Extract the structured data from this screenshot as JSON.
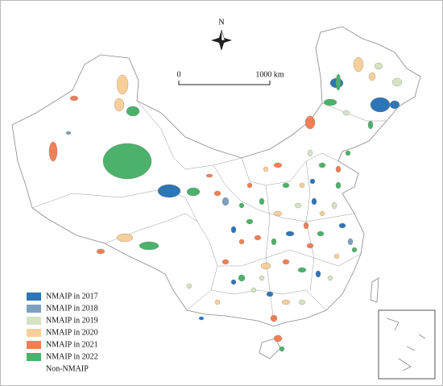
{
  "north_label": "N",
  "scale_bar": {
    "start": "0",
    "end": "1000 km"
  },
  "legend": [
    {
      "label": "NMAIP in 2017",
      "color": "#2e75b6"
    },
    {
      "label": "NMAIP in 2018",
      "color": "#7f9fbf"
    },
    {
      "label": "NMAIP in 2019",
      "color": "#d5e3c4"
    },
    {
      "label": "NMAIP in 2020",
      "color": "#f8cf9a"
    },
    {
      "label": "NMAIP in 2021",
      "color": "#f07f55"
    },
    {
      "label": "NMAIP in 2022",
      "color": "#4cb16a"
    },
    {
      "label": "Non-NMAIP",
      "color": "#ffffff"
    }
  ]
}
